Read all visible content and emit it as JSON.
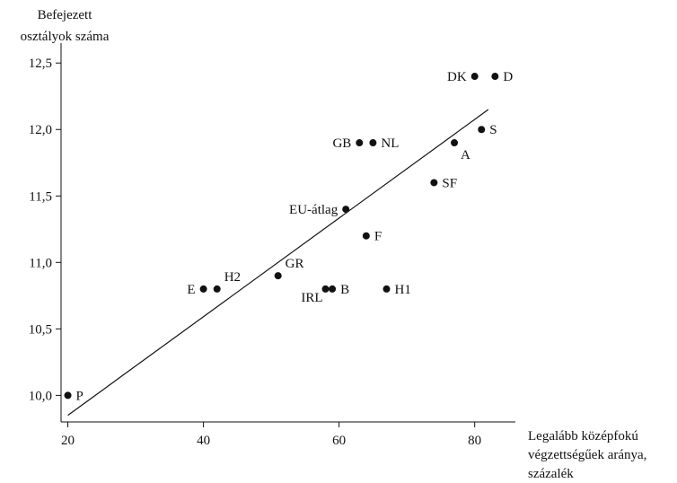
{
  "chart_data": {
    "type": "scatter",
    "ylabel_lines": [
      "Befejezett",
      "osztályok száma"
    ],
    "xlabel_lines": [
      "Legalább középfokú",
      "végzettségűek aránya,",
      "százalék"
    ],
    "xlim": [
      19,
      86
    ],
    "ylim": [
      9.8,
      12.65
    ],
    "xticks": [
      20,
      40,
      60,
      80
    ],
    "xtick_labels": [
      "20",
      "40",
      "60",
      "80"
    ],
    "yticks": [
      10.0,
      10.5,
      11.0,
      11.5,
      12.0,
      12.5
    ],
    "ytick_labels": [
      "10,0",
      "10,5",
      "11,0",
      "11,5",
      "12,0",
      "12,5"
    ],
    "grid": false,
    "legend": false,
    "points": [
      {
        "label": "P",
        "x": 20,
        "y": 10.0,
        "label_pos": "right"
      },
      {
        "label": "E",
        "x": 40,
        "y": 10.8,
        "label_pos": "left"
      },
      {
        "label": "H2",
        "x": 42,
        "y": 10.8,
        "label_pos": "above-right"
      },
      {
        "label": "GR",
        "x": 51,
        "y": 10.9,
        "label_pos": "above-right"
      },
      {
        "label": "IRL",
        "x": 58,
        "y": 10.8,
        "label_pos": "below-left"
      },
      {
        "label": "B",
        "x": 59,
        "y": 10.8,
        "label_pos": "right"
      },
      {
        "label": "H1",
        "x": 67,
        "y": 10.8,
        "label_pos": "right"
      },
      {
        "label": "EU-átlag",
        "x": 61,
        "y": 11.4,
        "label_pos": "left"
      },
      {
        "label": "F",
        "x": 64,
        "y": 11.2,
        "label_pos": "right"
      },
      {
        "label": "GB",
        "x": 63,
        "y": 11.9,
        "label_pos": "left"
      },
      {
        "label": "NL",
        "x": 65,
        "y": 11.9,
        "label_pos": "right"
      },
      {
        "label": "SF",
        "x": 74,
        "y": 11.6,
        "label_pos": "right"
      },
      {
        "label": "A",
        "x": 77,
        "y": 11.9,
        "label_pos": "below-right"
      },
      {
        "label": "S",
        "x": 81,
        "y": 12.0,
        "label_pos": "right"
      },
      {
        "label": "DK",
        "x": 80,
        "y": 12.4,
        "label_pos": "left"
      },
      {
        "label": "D",
        "x": 83,
        "y": 12.4,
        "label_pos": "right"
      }
    ],
    "trendline": {
      "x1": 20,
      "y1": 9.85,
      "x2": 82,
      "y2": 12.15
    },
    "colors": {
      "marker": "#111111",
      "line": "#111111",
      "axis": "#111111"
    }
  }
}
